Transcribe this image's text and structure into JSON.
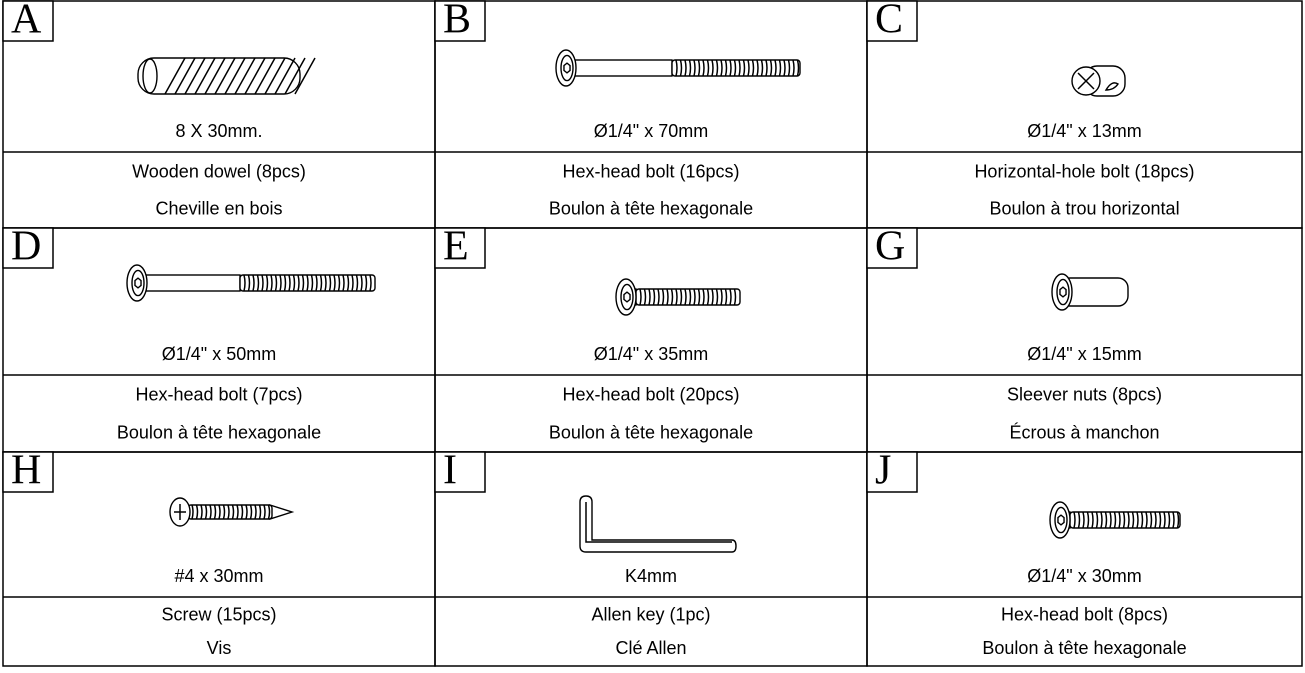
{
  "parts": [
    {
      "letter": "A",
      "size": "8 X 30mm.",
      "name": "Wooden dowel (8pcs)",
      "name_fr": "Cheville en bois"
    },
    {
      "letter": "B",
      "size": "Ø1/4\" x 70mm",
      "name": "Hex-head bolt (16pcs)",
      "name_fr": "Boulon à tête hexagonale"
    },
    {
      "letter": "C",
      "size": "Ø1/4\" x 13mm",
      "name": "Horizontal-hole bolt (18pcs)",
      "name_fr": "Boulon à trou horizontal"
    },
    {
      "letter": "D",
      "size": "Ø1/4\" x 50mm",
      "name": "Hex-head bolt (7pcs)",
      "name_fr": "Boulon à tête hexagonale"
    },
    {
      "letter": "E",
      "size": "Ø1/4\" x 35mm",
      "name": "Hex-head bolt (20pcs)",
      "name_fr": "Boulon à tête hexagonale"
    },
    {
      "letter": "G",
      "size": "Ø1/4\" x 15mm",
      "name": "Sleever nuts (8pcs)",
      "name_fr": "Écrous à manchon"
    },
    {
      "letter": "H",
      "size": "#4 x 30mm",
      "name": "Screw (15pcs)",
      "name_fr": "Vis"
    },
    {
      "letter": "I",
      "size": "K4mm",
      "name": "Allen key (1pc)",
      "name_fr": "Clé Allen"
    },
    {
      "letter": "J",
      "size": "Ø1/4\" x 30mm",
      "name": "Hex-head bolt (8pcs)",
      "name_fr": "Boulon à tête hexagonale"
    }
  ]
}
